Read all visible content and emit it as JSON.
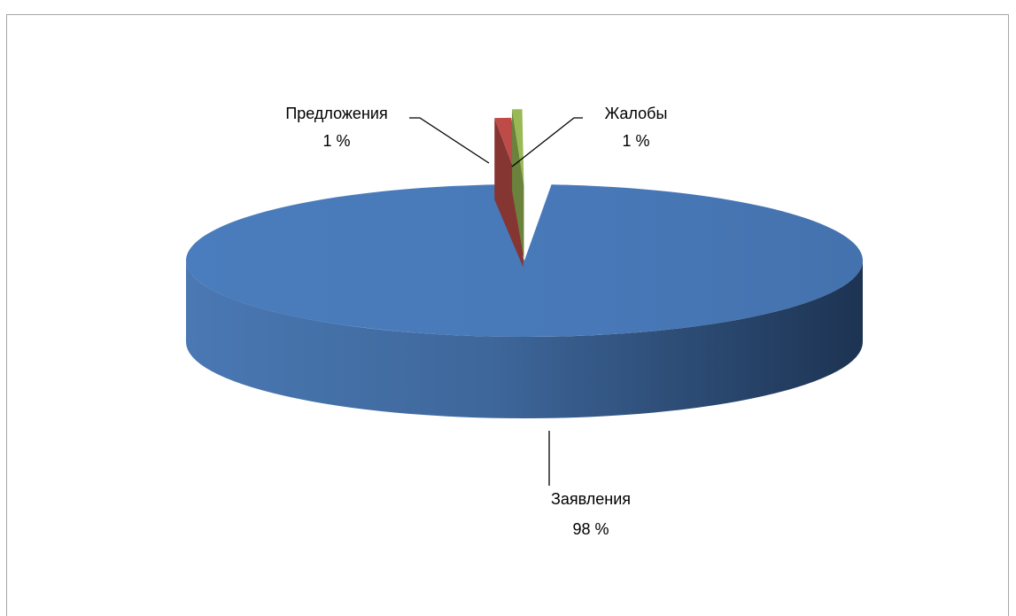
{
  "chart_data": {
    "type": "pie",
    "title": "",
    "legend": "none",
    "style": "3d-exploded",
    "slices": [
      {
        "name": "Заявления",
        "value": 98,
        "label_value": "98 %",
        "color": "#4a7ebb"
      },
      {
        "name": "Предложения",
        "value": 1,
        "label_value": "1 %",
        "color": "#be4b48"
      },
      {
        "name": "Жалобы",
        "value": 1,
        "label_value": "1 %",
        "color": "#98b954"
      }
    ]
  }
}
